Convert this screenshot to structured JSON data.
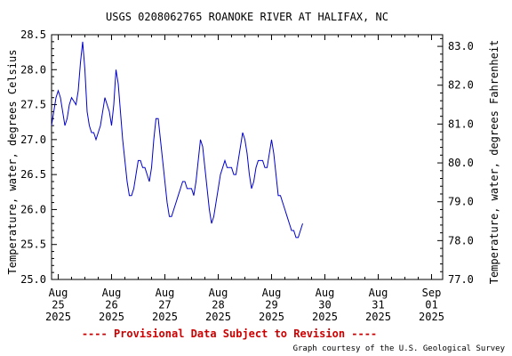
{
  "chart_data": {
    "type": "line",
    "title": "USGS 0208062765 ROANOKE RIVER AT HALIFAX, NC",
    "ylabel": "Temperature, water, degrees Celsius",
    "ylabel_right": "Temperature, water, degrees Fahrenheit",
    "ylim": [
      25.0,
      28.5
    ],
    "ylim_right": [
      77.0,
      83.3
    ],
    "yticks": [
      "25.0",
      "25.5",
      "26.0",
      "26.5",
      "27.0",
      "27.5",
      "28.0",
      "28.5"
    ],
    "yticks_right": [
      "77.0",
      "78.0",
      "79.0",
      "80.0",
      "81.0",
      "82.0",
      "83.0"
    ],
    "x_start": "Aug 24 2025 21:00",
    "x_end": "Sep 01 2025 05:00",
    "xticks": [
      {
        "label": [
          "Aug",
          "25",
          "2025"
        ],
        "day": 25
      },
      {
        "label": [
          "Aug",
          "26",
          "2025"
        ],
        "day": 26
      },
      {
        "label": [
          "Aug",
          "27",
          "2025"
        ],
        "day": 27
      },
      {
        "label": [
          "Aug",
          "28",
          "2025"
        ],
        "day": 28
      },
      {
        "label": [
          "Aug",
          "29",
          "2025"
        ],
        "day": 29
      },
      {
        "label": [
          "Aug",
          "30",
          "2025"
        ],
        "day": 30
      },
      {
        "label": [
          "Aug",
          "31",
          "2025"
        ],
        "day": 31
      },
      {
        "label": [
          "Sep",
          "01",
          "2025"
        ],
        "day": 32
      }
    ],
    "series": [
      {
        "color": "#0000cc",
        "points": [
          [
            "Aug 24 21:00",
            27.2
          ],
          [
            "Aug 24 22:00",
            27.4
          ],
          [
            "Aug 24 23:00",
            27.6
          ],
          [
            "Aug 25 00:00",
            27.7
          ],
          [
            "Aug 25 01:00",
            27.6
          ],
          [
            "Aug 25 02:00",
            27.4
          ],
          [
            "Aug 25 03:00",
            27.2
          ],
          [
            "Aug 25 04:00",
            27.3
          ],
          [
            "Aug 25 05:00",
            27.5
          ],
          [
            "Aug 25 06:00",
            27.6
          ],
          [
            "Aug 25 07:00",
            27.55
          ],
          [
            "Aug 25 08:00",
            27.5
          ],
          [
            "Aug 25 09:00",
            27.7
          ],
          [
            "Aug 25 10:00",
            28.1
          ],
          [
            "Aug 25 11:00",
            28.4
          ],
          [
            "Aug 25 12:00",
            28.0
          ],
          [
            "Aug 25 13:00",
            27.4
          ],
          [
            "Aug 25 14:00",
            27.2
          ],
          [
            "Aug 25 15:00",
            27.1
          ],
          [
            "Aug 25 16:00",
            27.1
          ],
          [
            "Aug 25 17:00",
            27.0
          ],
          [
            "Aug 25 18:00",
            27.1
          ],
          [
            "Aug 25 19:00",
            27.2
          ],
          [
            "Aug 25 20:00",
            27.4
          ],
          [
            "Aug 25 21:00",
            27.6
          ],
          [
            "Aug 25 22:00",
            27.5
          ],
          [
            "Aug 25 23:00",
            27.4
          ],
          [
            "Aug 26 00:00",
            27.2
          ],
          [
            "Aug 26 01:00",
            27.5
          ],
          [
            "Aug 26 02:00",
            28.0
          ],
          [
            "Aug 26 03:00",
            27.8
          ],
          [
            "Aug 26 04:00",
            27.4
          ],
          [
            "Aug 26 05:00",
            27.0
          ],
          [
            "Aug 26 06:00",
            26.7
          ],
          [
            "Aug 26 07:00",
            26.4
          ],
          [
            "Aug 26 08:00",
            26.2
          ],
          [
            "Aug 26 09:00",
            26.2
          ],
          [
            "Aug 26 10:00",
            26.3
          ],
          [
            "Aug 26 11:00",
            26.5
          ],
          [
            "Aug 26 12:00",
            26.7
          ],
          [
            "Aug 26 13:00",
            26.7
          ],
          [
            "Aug 26 14:00",
            26.6
          ],
          [
            "Aug 26 15:00",
            26.6
          ],
          [
            "Aug 26 16:00",
            26.5
          ],
          [
            "Aug 26 17:00",
            26.4
          ],
          [
            "Aug 26 18:00",
            26.6
          ],
          [
            "Aug 26 19:00",
            27.0
          ],
          [
            "Aug 26 20:00",
            27.3
          ],
          [
            "Aug 26 21:00",
            27.3
          ],
          [
            "Aug 26 22:00",
            27.0
          ],
          [
            "Aug 26 23:00",
            26.7
          ],
          [
            "Aug 27 00:00",
            26.4
          ],
          [
            "Aug 27 01:00",
            26.1
          ],
          [
            "Aug 27 02:00",
            25.9
          ],
          [
            "Aug 27 03:00",
            25.9
          ],
          [
            "Aug 27 04:00",
            26.0
          ],
          [
            "Aug 27 05:00",
            26.1
          ],
          [
            "Aug 27 06:00",
            26.2
          ],
          [
            "Aug 27 07:00",
            26.3
          ],
          [
            "Aug 27 08:00",
            26.4
          ],
          [
            "Aug 27 09:00",
            26.4
          ],
          [
            "Aug 27 10:00",
            26.3
          ],
          [
            "Aug 27 11:00",
            26.3
          ],
          [
            "Aug 27 12:00",
            26.3
          ],
          [
            "Aug 27 13:00",
            26.2
          ],
          [
            "Aug 27 14:00",
            26.4
          ],
          [
            "Aug 27 15:00",
            26.7
          ],
          [
            "Aug 27 16:00",
            27.0
          ],
          [
            "Aug 27 17:00",
            26.9
          ],
          [
            "Aug 27 18:00",
            26.6
          ],
          [
            "Aug 27 19:00",
            26.3
          ],
          [
            "Aug 27 20:00",
            26.0
          ],
          [
            "Aug 27 21:00",
            25.8
          ],
          [
            "Aug 27 22:00",
            25.9
          ],
          [
            "Aug 27 23:00",
            26.1
          ],
          [
            "Aug 28 00:00",
            26.3
          ],
          [
            "Aug 28 01:00",
            26.5
          ],
          [
            "Aug 28 02:00",
            26.6
          ],
          [
            "Aug 28 03:00",
            26.7
          ],
          [
            "Aug 28 04:00",
            26.6
          ],
          [
            "Aug 28 05:00",
            26.6
          ],
          [
            "Aug 28 06:00",
            26.6
          ],
          [
            "Aug 28 07:00",
            26.5
          ],
          [
            "Aug 28 08:00",
            26.5
          ],
          [
            "Aug 28 09:00",
            26.7
          ],
          [
            "Aug 28 10:00",
            26.9
          ],
          [
            "Aug 28 11:00",
            27.1
          ],
          [
            "Aug 28 12:00",
            27.0
          ],
          [
            "Aug 28 13:00",
            26.8
          ],
          [
            "Aug 28 14:00",
            26.5
          ],
          [
            "Aug 28 15:00",
            26.3
          ],
          [
            "Aug 28 16:00",
            26.4
          ],
          [
            "Aug 28 17:00",
            26.6
          ],
          [
            "Aug 28 18:00",
            26.7
          ],
          [
            "Aug 28 19:00",
            26.7
          ],
          [
            "Aug 28 20:00",
            26.7
          ],
          [
            "Aug 28 21:00",
            26.6
          ],
          [
            "Aug 28 22:00",
            26.6
          ],
          [
            "Aug 28 23:00",
            26.8
          ],
          [
            "Aug 29 00:00",
            27.0
          ],
          [
            "Aug 29 01:00",
            26.8
          ],
          [
            "Aug 29 02:00",
            26.5
          ],
          [
            "Aug 29 03:00",
            26.2
          ],
          [
            "Aug 29 04:00",
            26.2
          ],
          [
            "Aug 29 05:00",
            26.1
          ],
          [
            "Aug 29 06:00",
            26.0
          ],
          [
            "Aug 29 07:00",
            25.9
          ],
          [
            "Aug 29 08:00",
            25.8
          ],
          [
            "Aug 29 09:00",
            25.7
          ],
          [
            "Aug 29 10:00",
            25.7
          ],
          [
            "Aug 29 11:00",
            25.6
          ],
          [
            "Aug 29 12:00",
            25.6
          ],
          [
            "Aug 29 13:00",
            25.7
          ],
          [
            "Aug 29 14:00",
            25.8
          ]
        ]
      }
    ]
  },
  "footer": {
    "disclaimer": "---- Provisional Data Subject to Revision ----",
    "credit": "Graph courtesy of the U.S. Geological Survey"
  },
  "colors": {
    "line": "#0000cc",
    "axis": "#000000",
    "disclaimer": "#cc0000"
  }
}
